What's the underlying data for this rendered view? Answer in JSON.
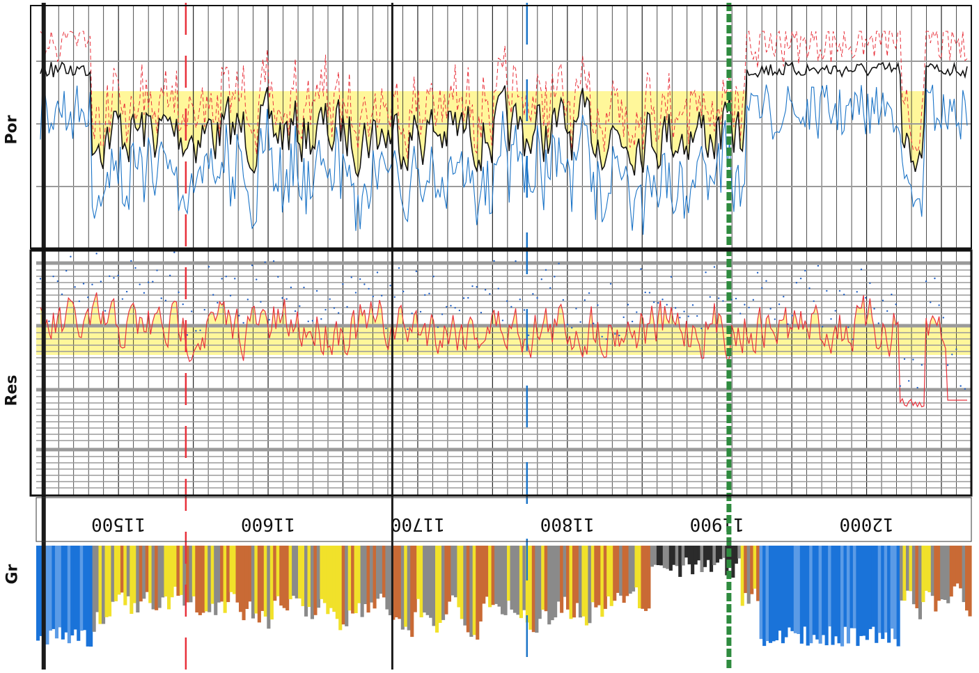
{
  "chart_data": {
    "type": "line",
    "tracks": [
      {
        "name": "Por",
        "series": [
          {
            "color": "#111111"
          },
          {
            "color": "#1b74c7"
          },
          {
            "color": "#e8303a"
          }
        ],
        "fill_color": "#fff79a"
      },
      {
        "name": "Res",
        "series": [
          {
            "color": "#e8303a"
          },
          {
            "color": "#1f5fc4"
          }
        ],
        "fill_color": "#fff79a",
        "scale": "log"
      },
      {
        "name": "Gr",
        "style": "variable-color fill",
        "fill_colors": [
          "#1a73d9",
          "#5b9be6",
          "#f1e12a",
          "#c96a35",
          "#8a8a8a",
          "#2b2b2b",
          "#3e9a3e"
        ]
      }
    ],
    "depth_axis": {
      "ticks": [
        11500,
        11600,
        11700,
        11800,
        11900,
        12000
      ],
      "range": [
        11445,
        12070
      ],
      "orientation": "horizontal, labels printed upside-down"
    },
    "markers": [
      {
        "depth": 11450,
        "color": "#1a1a1a"
      },
      {
        "depth": 11545,
        "color": "#e8303a"
      },
      {
        "depth": 11683,
        "color": "#1a1a1a"
      },
      {
        "depth": 11773,
        "color": "#1b74c7"
      },
      {
        "depth": 11908,
        "color": "#2e8b3e"
      }
    ],
    "grid": true
  },
  "labels": {
    "por": "Por",
    "res": "Res",
    "gr": "Gr"
  }
}
